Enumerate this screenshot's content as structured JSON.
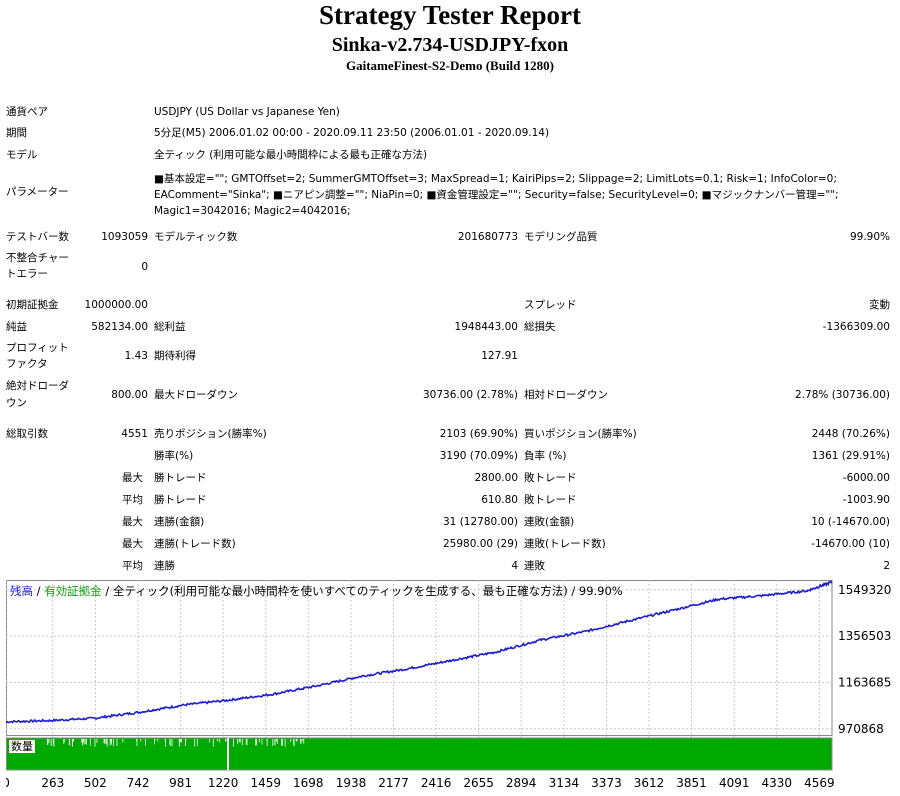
{
  "header": {
    "title": "Strategy Tester Report",
    "ea": "Sinka-v2.734-USDJPY-fxon",
    "server": "GaitameFinest-S2-Demo (Build 1280)"
  },
  "info": {
    "pair_label": "通貨ペア",
    "pair_value": "USDJPY (US Dollar vs Japanese Yen)",
    "period_label": "期間",
    "period_value": "5分足(M5) 2006.01.02 00:00 - 2020.09.11 23:50 (2006.01.01 - 2020.09.14)",
    "model_label": "モデル",
    "model_value": "全ティック (利用可能な最小時間枠による最も正確な方法)",
    "params_label": "パラメーター",
    "params_value": "■基本設定=\"\"; GMTOffset=2; SummerGMTOffset=3; MaxSpread=1; KairiPips=2; Slippage=2; LimitLots=0.1; Risk=1; InfoColor=0; EAComment=\"Sinka\"; ■ニアピン調整=\"\"; NiaPin=0; ■資金管理設定=\"\"; Security=false; SecurityLevel=0; ■マジックナンバー管理=\"\"; Magic1=3042016; Magic2=4042016;"
  },
  "stats": {
    "bars_label": "テストバー数",
    "bars_value": "1093059",
    "ticks_label": "モデルティック数",
    "ticks_value": "201680773",
    "quality_label": "モデリング品質",
    "quality_value": "99.90%",
    "mismatch_label_1": "不整合チャー",
    "mismatch_label_2": "トエラー",
    "mismatch_value": "0",
    "deposit_label": "初期証拠金",
    "deposit_value": "1000000.00",
    "spread_label": "スプレッド",
    "spread_value": "変動",
    "net_label": "純益",
    "net_value": "582134.00",
    "gross_profit_label": "総利益",
    "gross_profit_value": "1948443.00",
    "gross_loss_label": "総損失",
    "gross_loss_value": "-1366309.00",
    "pf_label_1": "プロフィット",
    "pf_label_2": "ファクタ",
    "pf_value": "1.43",
    "expected_label": "期待利得",
    "expected_value": "127.91",
    "abs_dd_label_1": "絶対ドローダ",
    "abs_dd_label_2": "ウン",
    "abs_dd_value": "800.00",
    "max_dd_label": "最大ドローダウン",
    "max_dd_value": "30736.00 (2.78%)",
    "rel_dd_label": "相対ドローダウン",
    "rel_dd_value": "2.78% (30736.00)",
    "total_trades_label": "総取引数",
    "total_trades_value": "4551",
    "short_label": "売りポジション(勝率%)",
    "short_value": "2103 (69.90%)",
    "long_label": "買いポジション(勝率%)",
    "long_value": "2448 (70.26%)",
    "win_label": "勝率(%)",
    "win_value": "3190 (70.09%)",
    "loss_label": "負率 (%)",
    "loss_value": "1361 (29.91%)",
    "max_word": "最大",
    "avg_word": "平均",
    "largest_win_label": "勝トレード",
    "largest_win_value": "2800.00",
    "largest_loss_label": "敗トレード",
    "largest_loss_value": "-6000.00",
    "avg_win_label": "勝トレード",
    "avg_win_value": "610.80",
    "avg_loss_label": "敗トレード",
    "avg_loss_value": "-1003.90",
    "cons_win_amt_label": "連勝(金額)",
    "cons_win_amt_value": "31 (12780.00)",
    "cons_loss_amt_label": "連敗(金額)",
    "cons_loss_amt_value": "10 (-14670.00)",
    "cons_win_cnt_label": "連勝(トレード数)",
    "cons_win_cnt_value": "25980.00 (29)",
    "cons_loss_cnt_label": "連敗(トレード数)",
    "cons_loss_cnt_value": "-14670.00 (10)",
    "avg_cons_win_label": "連勝",
    "avg_cons_win_value": "4",
    "avg_cons_loss_label": "連敗",
    "avg_cons_loss_value": "2"
  },
  "legend": {
    "balance": "残高",
    "sep1": " / ",
    "equity": "有効証拠金",
    "rest": " / 全ティック(利用可能な最小時間枠を使いすべてのティックを生成する、最も正確な方法) / 99.90%",
    "volume": "数量"
  },
  "colors": {
    "balance_line": "#1d1dcc",
    "volume_fill": "#00aa00",
    "grid": "#c8c8c8"
  },
  "chart_data": {
    "type": "line",
    "series": [
      {
        "name": "残高",
        "x": [
          0,
          250,
          500,
          750,
          1000,
          1250,
          1500,
          1750,
          2000,
          2250,
          2500,
          2750,
          3000,
          3250,
          3500,
          3750,
          4000,
          4250,
          4500,
          4640
        ],
        "values": [
          1000000,
          1005000,
          1015000,
          1040000,
          1070000,
          1090000,
          1115000,
          1150000,
          1190000,
          1220000,
          1255000,
          1290000,
          1340000,
          1375000,
          1420000,
          1465000,
          1510000,
          1525000,
          1545000,
          1582000
        ]
      }
    ],
    "y_ticks": [
      "1549320",
      "1356503",
      "1163685",
      "970868"
    ],
    "x_ticks": [
      "0",
      "263",
      "502",
      "742",
      "981",
      "1220",
      "1459",
      "1698",
      "1938",
      "2177",
      "2416",
      "2655",
      "2894",
      "3134",
      "3373",
      "3612",
      "3851",
      "4091",
      "4330",
      "4569"
    ],
    "ylim": [
      945000,
      1590000
    ],
    "xlim": [
      0,
      4640
    ],
    "grid": true
  }
}
